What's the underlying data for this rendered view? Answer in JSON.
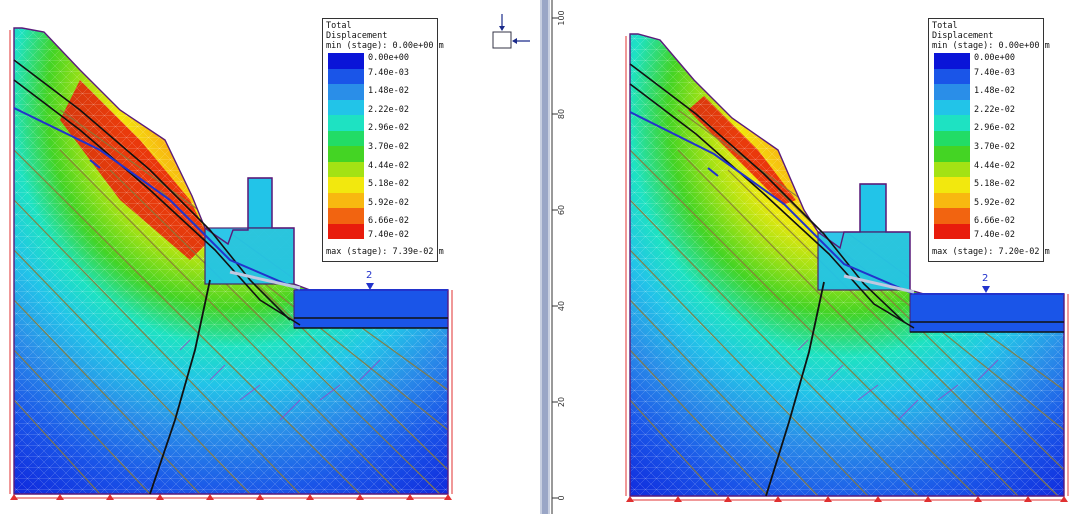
{
  "legend": {
    "title_line1": "Total",
    "title_line2": "Displacement",
    "min_label": "min (stage): 0.00e+00 m",
    "levels": [
      "0.00e+00",
      "7.40e-03",
      "1.48e-02",
      "2.22e-02",
      "2.96e-02",
      "3.70e-02",
      "4.44e-02",
      "5.18e-02",
      "5.92e-02",
      "6.66e-02",
      "7.40e-02"
    ],
    "colors": [
      "#0a14d8",
      "#1a55e8",
      "#2a8ee8",
      "#22c4e8",
      "#1ee2c2",
      "#22dc66",
      "#44d424",
      "#a4e214",
      "#f2e80e",
      "#f8b810",
      "#f26410",
      "#e81c0c"
    ]
  },
  "left_model": {
    "max_label": "max (stage): 7.39e-02 m",
    "water_label": "2"
  },
  "right_model": {
    "max_label": "max (stage): 7.20e-02 m",
    "water_label": "2"
  },
  "ruler": {
    "ticks": [
      "100",
      "80",
      "60",
      "40",
      "20",
      "0"
    ]
  },
  "icons": {
    "view_control": "view-direction-icon"
  }
}
